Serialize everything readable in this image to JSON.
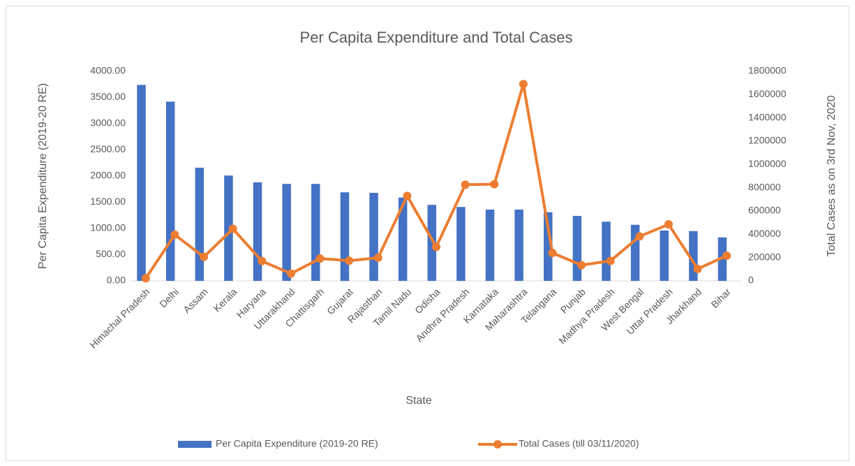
{
  "chart_data": {
    "type": "bar-line",
    "title": "Per Capita Expenditure and Total Cases",
    "x_label": "State",
    "y_label": "Per Capita Expenditure (2019-20 RE)",
    "y2_label": "Total Cases as on 3rd Nov, 2020",
    "categories": [
      "Himachal Pradesh",
      "Delhi",
      "Assam",
      "Kerala",
      "Haryana",
      "Uttarakhand",
      "Chattisgarh",
      "Gujarat",
      "Rajasthan",
      "Tamil Nadu",
      "Odisha",
      "Andhra Pradesh",
      "Karnataka",
      "Maharashtra",
      "Telangana",
      "Punjab",
      "Madhya Pradesh",
      "West Bengal",
      "Uttar Pradesh",
      "Jharkhand",
      "Bihar"
    ],
    "series": [
      {
        "name": "Per Capita Expenditure (2019-20 RE)",
        "type": "bar",
        "color": "#4472c4",
        "axis": "y",
        "values": [
          3740,
          3420,
          2160,
          2010,
          1880,
          1850,
          1850,
          1690,
          1680,
          1590,
          1450,
          1410,
          1360,
          1360,
          1310,
          1240,
          1130,
          1070,
          960,
          950,
          830
        ]
      },
      {
        "name": "Total Cases (till 03/11/2020)",
        "type": "line",
        "color": "#ed7d31",
        "axis": "y2",
        "values": [
          22000,
          396000,
          206000,
          447000,
          170000,
          62000,
          192000,
          173000,
          199000,
          730000,
          292000,
          826000,
          830000,
          1690000,
          240000,
          135000,
          172000,
          382000,
          485000,
          103000,
          216000
        ]
      }
    ],
    "ylim": [
      0,
      4000
    ],
    "yticks": [
      {
        "value": 0,
        "label": "0.00"
      },
      {
        "value": 500,
        "label": "500.00"
      },
      {
        "value": 1000,
        "label": "1000.00"
      },
      {
        "value": 1500,
        "label": "1500.00"
      },
      {
        "value": 2000,
        "label": "2000.00"
      },
      {
        "value": 2500,
        "label": "2500.00"
      },
      {
        "value": 3000,
        "label": "3000.00"
      },
      {
        "value": 3500,
        "label": "3500.00"
      },
      {
        "value": 4000,
        "label": "4000.00"
      }
    ],
    "y2lim": [
      0,
      1800000
    ],
    "y2ticks": [
      0,
      200000,
      400000,
      600000,
      800000,
      1000000,
      1200000,
      1400000,
      1600000,
      1800000
    ],
    "grid": false,
    "legend": "bottom"
  }
}
